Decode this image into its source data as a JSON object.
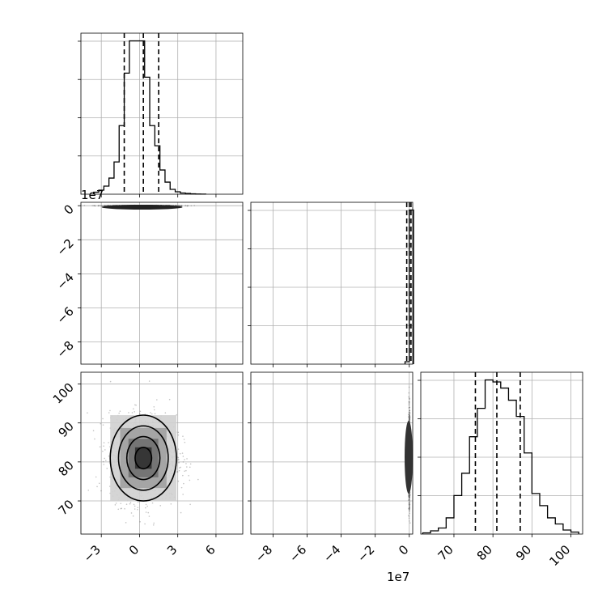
{
  "chart_data": {
    "type": "corner",
    "parameters": [
      {
        "name": "",
        "offset_label": "",
        "ticks": [
          -3,
          0,
          3,
          6
        ],
        "tick_labels": [
          "−3",
          "0",
          "3",
          "6"
        ],
        "range": [
          -4.6,
          8.1
        ]
      },
      {
        "name": "",
        "offset_label": "1e7",
        "ticks": [
          -8,
          -6,
          -4,
          -2,
          0
        ],
        "tick_labels": [
          "−8",
          "−6",
          "−4",
          "−2",
          "0"
        ],
        "range": [
          -9.3,
          0.2
        ]
      },
      {
        "name": "",
        "offset_label": "",
        "ticks": [
          70,
          80,
          90,
          100
        ],
        "tick_labels": [
          "70",
          "80",
          "90",
          "100"
        ],
        "range": [
          61.5,
          103
        ]
      }
    ],
    "quantiles": [
      [
        -1.2,
        0.3,
        1.5
      ],
      [
        -0.15,
        0.0,
        0.1
      ],
      [
        75.5,
        81,
        87
      ]
    ],
    "histograms": [
      {
        "bins": [
          -3.6,
          -3.2,
          -2.8,
          -2.4,
          -2.0,
          -1.6,
          -1.2,
          -0.8,
          -0.4,
          0.0,
          0.4,
          0.8,
          1.2,
          1.6,
          2.0,
          2.4,
          2.8,
          3.2,
          3.6,
          4.0,
          4.4,
          4.8,
          5.2
        ],
        "counts": [
          0.5,
          1,
          2,
          4,
          8,
          17,
          30,
          38,
          38,
          38,
          29,
          17,
          12,
          6,
          3,
          1.2,
          0.6,
          0.3,
          0.2,
          0.1,
          0.05,
          0.02
        ]
      },
      {
        "bins": [
          -0.25,
          0.0,
          0.25
        ],
        "counts": [
          0.6,
          38
        ]
      },
      {
        "bins": [
          62,
          64,
          66,
          68,
          70,
          72,
          74,
          76,
          78,
          80,
          82,
          84,
          86,
          88,
          90,
          92,
          94,
          96,
          98,
          100,
          102
        ],
        "counts": [
          0.3,
          0.8,
          1.5,
          4,
          9.5,
          15,
          24,
          31,
          38,
          37.5,
          36,
          33,
          29,
          20,
          10,
          7,
          4,
          2.5,
          1.0,
          0.5
        ]
      }
    ],
    "scatter": [
      {
        "x_param": 0,
        "y_param": 1,
        "center": [
          0.2,
          0.0
        ],
        "spread": [
          1.3,
          0.01
        ]
      },
      {
        "x_param": 0,
        "y_param": 2,
        "center": [
          0.3,
          81
        ],
        "spread": [
          1.3,
          5.5
        ]
      },
      {
        "x_param": 1,
        "y_param": 2,
        "center": [
          0.0,
          81
        ],
        "spread": [
          0.02,
          5.5
        ]
      }
    ]
  }
}
